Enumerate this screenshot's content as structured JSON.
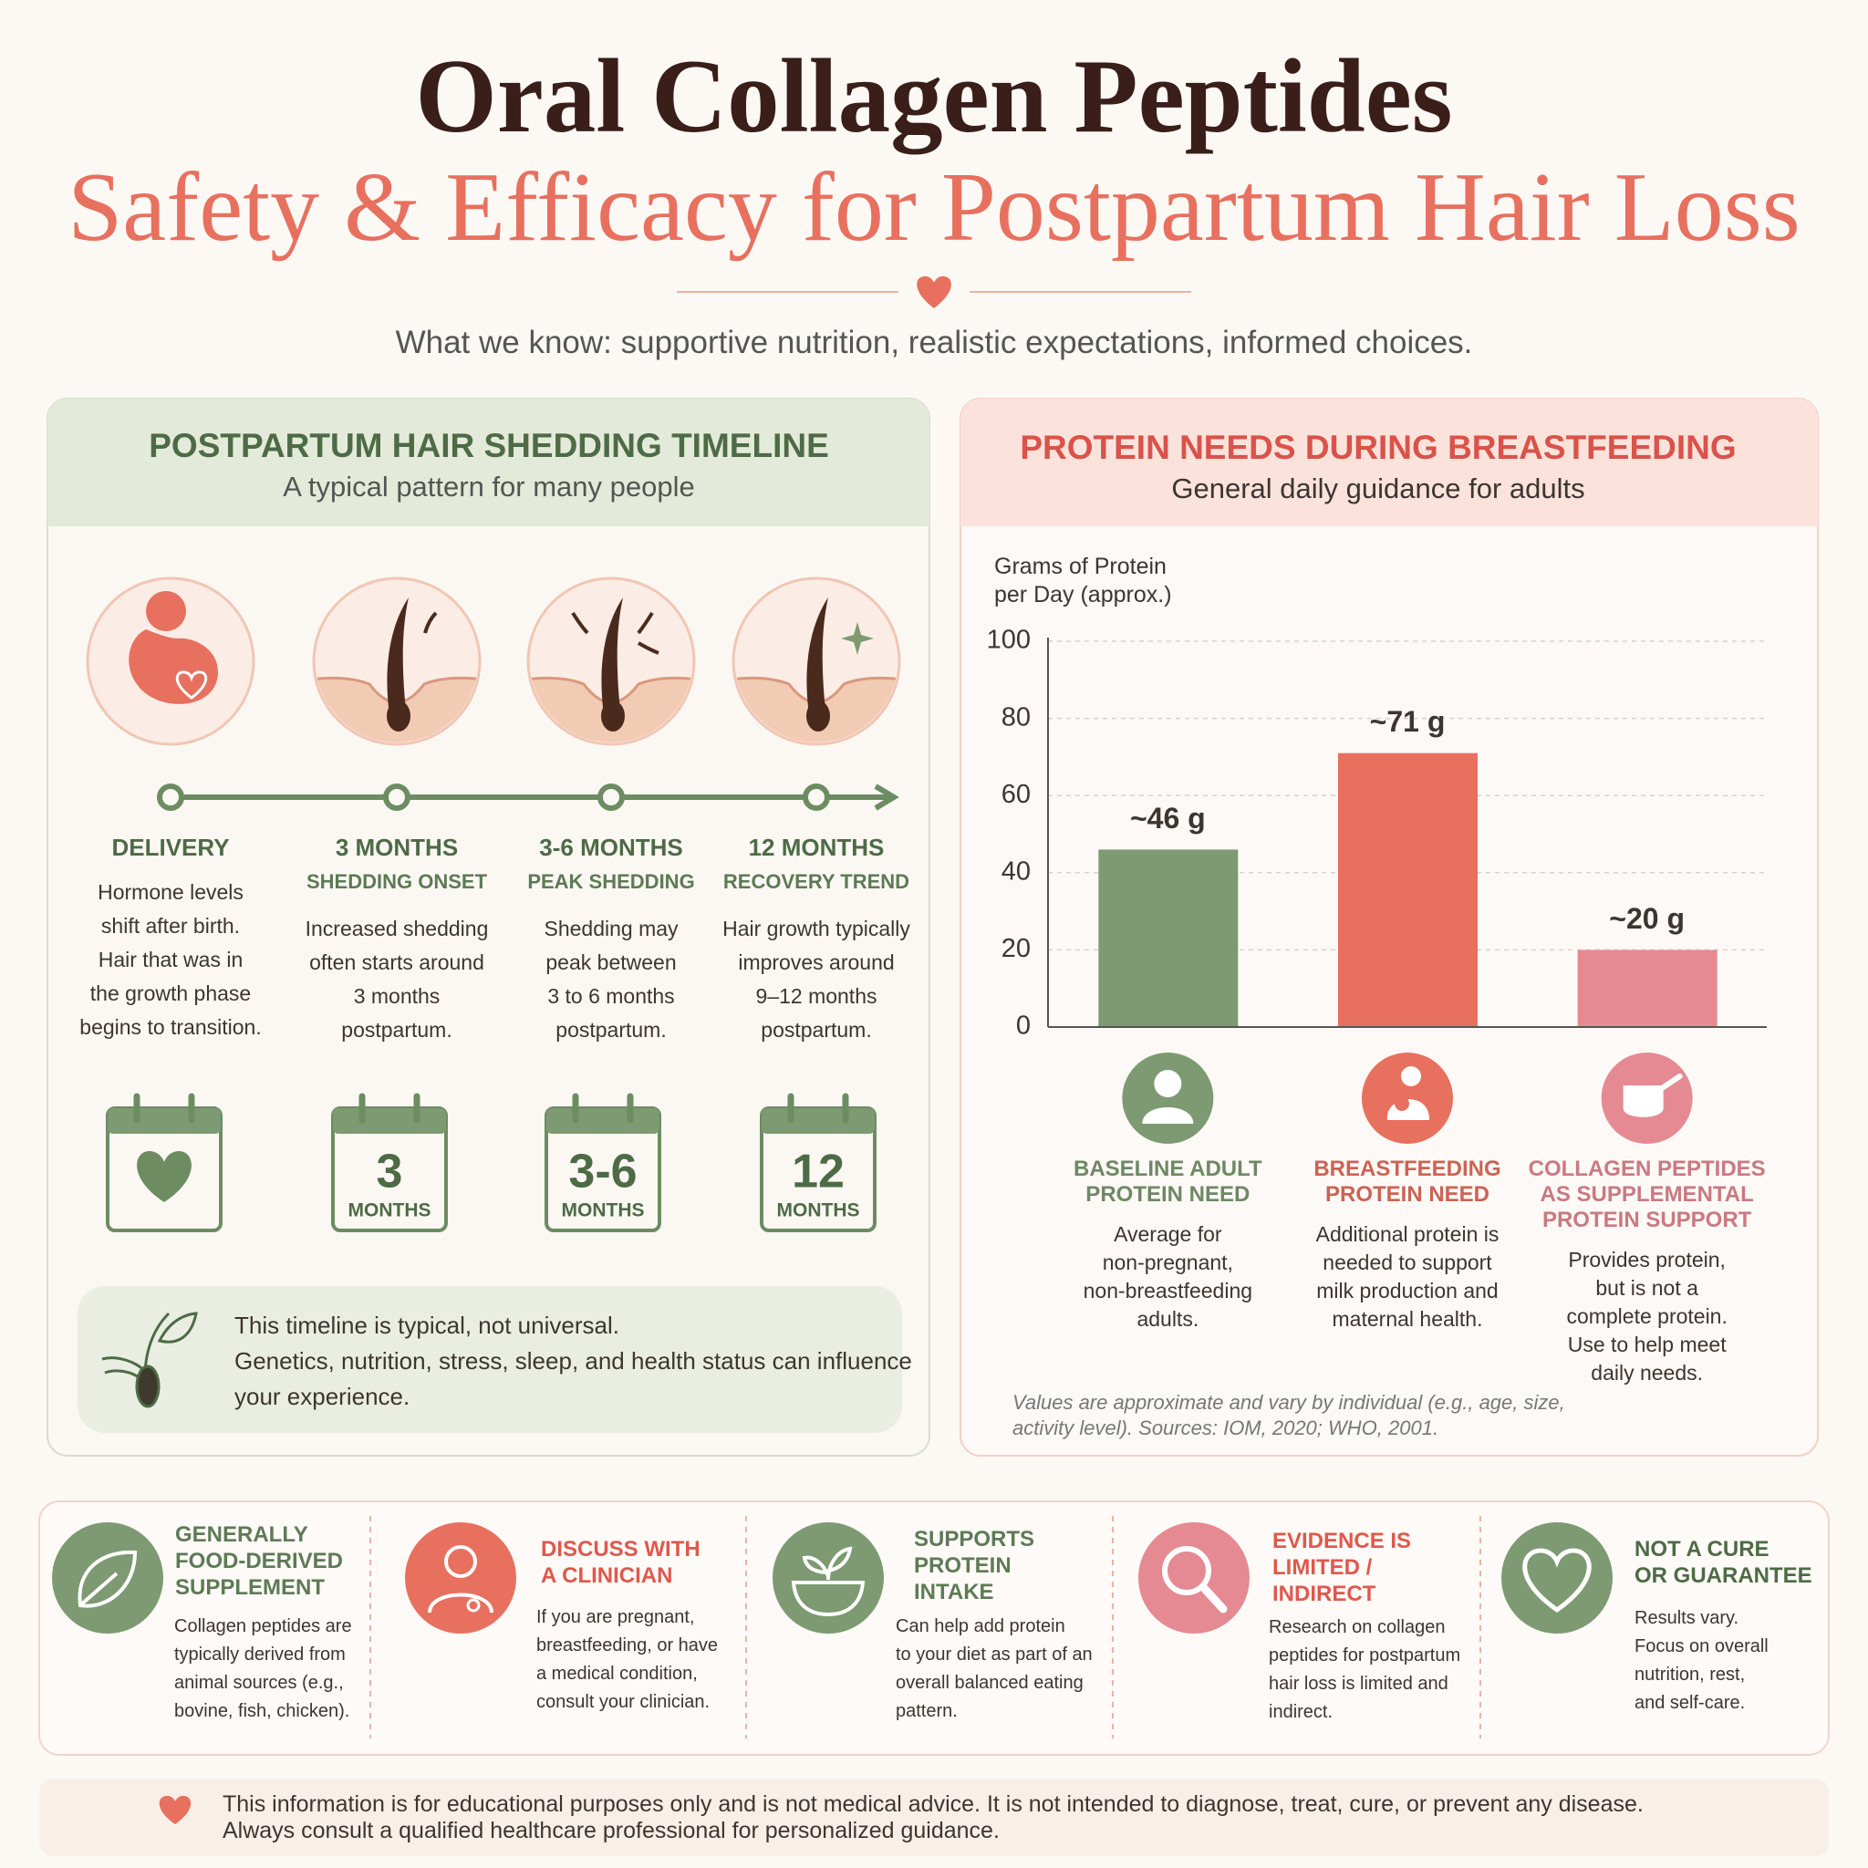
{
  "header": {
    "title": "Oral Collagen Peptides",
    "subtitle": "Safety & Efficacy for Postpartum Hair Loss",
    "tagline": "What we know: supportive nutrition, realistic expectations, informed choices."
  },
  "timeline": {
    "title": "POSTPARTUM HAIR SHEDDING TIMELINE",
    "subtitle": "A typical pattern for many people",
    "steps": [
      {
        "label": "DELIVERY",
        "text": "Hormone levels\nshift after birth.\nHair that was in\nthe growth phase\nbegins to transition."
      },
      {
        "label": "3 MONTHS",
        "sublabel": "SHEDDING ONSET",
        "text": "Increased shedding\noften starts around\n3 months\npostpartum.",
        "calendar_number": "3",
        "calendar_label": "MONTHS"
      },
      {
        "label": "3-6 MONTHS",
        "sublabel": "PEAK SHEDDING",
        "text": "Shedding may\npeak between\n3 to 6 months\npostpartum.",
        "calendar_number": "3-6",
        "calendar_label": "MONTHS"
      },
      {
        "label": "12 MONTHS",
        "sublabel": "RECOVERY TREND",
        "text": "Hair growth typically\nimproves around\n9–12 months\npostpartum.",
        "calendar_number": "12",
        "calendar_label": "MONTHS"
      }
    ],
    "note": {
      "lead": "This timeline is typical, not universal.",
      "text": "Genetics, nutrition, stress, sleep, and health status can influence\nyour experience."
    }
  },
  "chart_data": {
    "type": "bar",
    "title": "PROTEIN NEEDS DURING BREASTFEEDING",
    "subtitle": "General daily guidance for adults",
    "y_label": "Grams of Protein\nper Day (approx.)",
    "categories": [
      "BASELINE ADULT\nPROTEIN NEED",
      "BREASTFEEDING\nPROTEIN NEED",
      "COLLAGEN PEPTIDES\nAS SUPPLEMENTAL\nPROTEIN SUPPORT"
    ],
    "category_notes": [
      "Average for\nnon-pregnant,\nnon-breastfeeding\nadults.",
      "Additional protein is\nneeded to support\nmilk production and\nmaternal health.",
      "Provides protein,\nbut is not a\ncomplete protein.\nUse to help meet\ndaily needs."
    ],
    "values": [
      46,
      71,
      20
    ],
    "value_labels": [
      "~46 g",
      "~71 g",
      "~20 g"
    ],
    "colors": [
      "#7d9a72",
      "#e8705f",
      "#e58a93"
    ],
    "ylim": [
      0,
      100
    ],
    "yticks": [
      0,
      20,
      40,
      60,
      80,
      100
    ],
    "grid": true,
    "note": "Values are approximate and vary by individual (e.g., age, size,\nactivity level). Sources: IOM, 2020; WHO, 2001."
  },
  "features": [
    {
      "title": "GENERALLY\nFOOD-DERIVED\nSUPPLEMENT",
      "text": "Collagen peptides are\ntypically derived from\nanimal sources (e.g.,\nbovine, fish, chicken)."
    },
    {
      "title": "DISCUSS WITH\nA CLINICIAN",
      "text": "If you are pregnant,\nbreastfeeding, or have\na medical condition,\nconsult your clinician."
    },
    {
      "title": "SUPPORTS\nPROTEIN\nINTAKE",
      "text": "Can help add protein\nto your diet as part of an\noverall balanced eating\npattern."
    },
    {
      "title": "EVIDENCE IS\nLIMITED /\nINDIRECT",
      "text": "Research on collagen\npeptides for postpartum\nhair loss is limited and\nindirect."
    },
    {
      "title": "NOT A CURE\nOR GUARANTEE",
      "text": "Results vary.\nFocus on overall\nnutrition, rest,\nand self-care."
    }
  ],
  "disclaimer": "This information is for educational purposes only and is not medical advice. It is not intended to diagnose, treat, cure, or prevent any disease.\nAlways consult a qualified healthcare professional for personalized guidance."
}
